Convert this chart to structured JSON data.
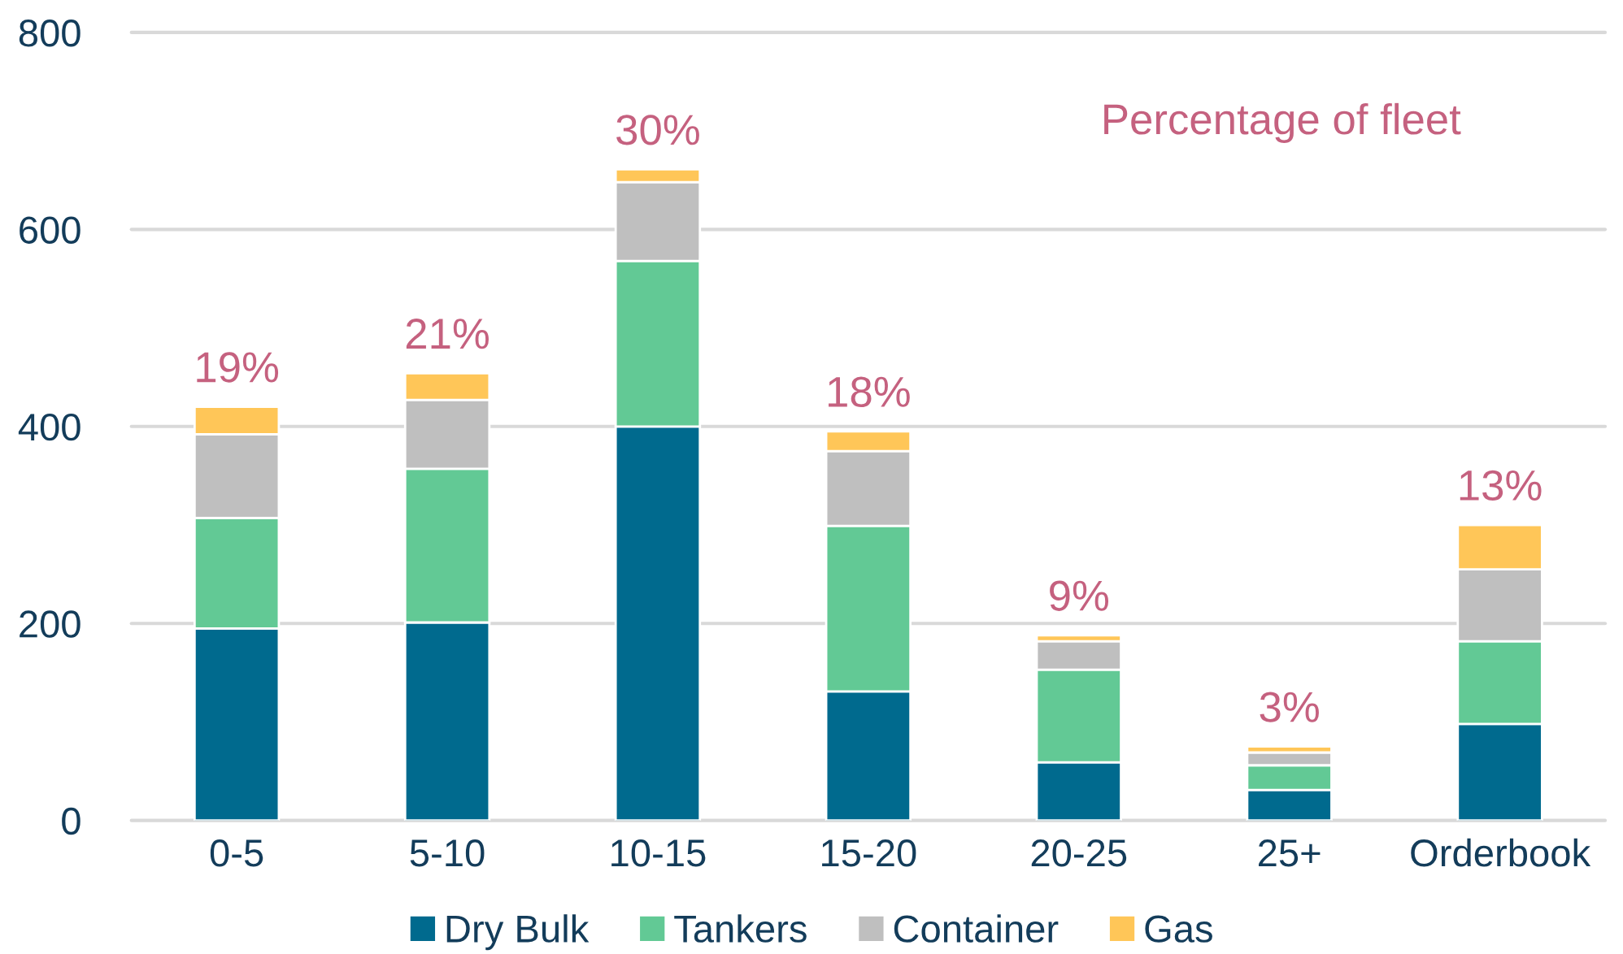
{
  "chart_data": {
    "type": "bar",
    "stacked": true,
    "categories": [
      "0-5",
      "5-10",
      "10-15",
      "15-20",
      "20-25",
      "25+",
      "Orderbook"
    ],
    "series": [
      {
        "name": "Dry Bulk",
        "color": "#006a8e",
        "values": [
          195,
          201,
          400,
          131,
          59,
          31,
          98
        ]
      },
      {
        "name": "Tankers",
        "color": "#62c995",
        "values": [
          112,
          156,
          168,
          168,
          94,
          25,
          84
        ]
      },
      {
        "name": "Container",
        "color": "#bfbfbf",
        "values": [
          85,
          70,
          80,
          76,
          29,
          13,
          73
        ]
      },
      {
        "name": "Gas",
        "color": "#ffc658",
        "values": [
          28,
          27,
          13,
          20,
          6,
          6,
          45
        ]
      }
    ],
    "ylim": [
      0,
      800
    ],
    "yticks": [
      0,
      200,
      400,
      600,
      800
    ],
    "grid": "y",
    "legend": "bottom",
    "annotations": [
      "Percentage of fleet",
      {
        "text": "19%",
        "x": "0-5",
        "y": 420
      },
      {
        "text": "21%",
        "x": "5-10",
        "y": 454
      },
      {
        "text": "30%",
        "x": "10-15",
        "y": 661
      },
      {
        "text": "18%",
        "x": "15-20",
        "y": 395
      },
      {
        "text": "9%",
        "x": "20-25",
        "y": 188
      },
      {
        "text": "3%",
        "x": "25+",
        "y": 75
      },
      {
        "text": "13%",
        "x": "Orderbook",
        "y": 300
      }
    ]
  }
}
